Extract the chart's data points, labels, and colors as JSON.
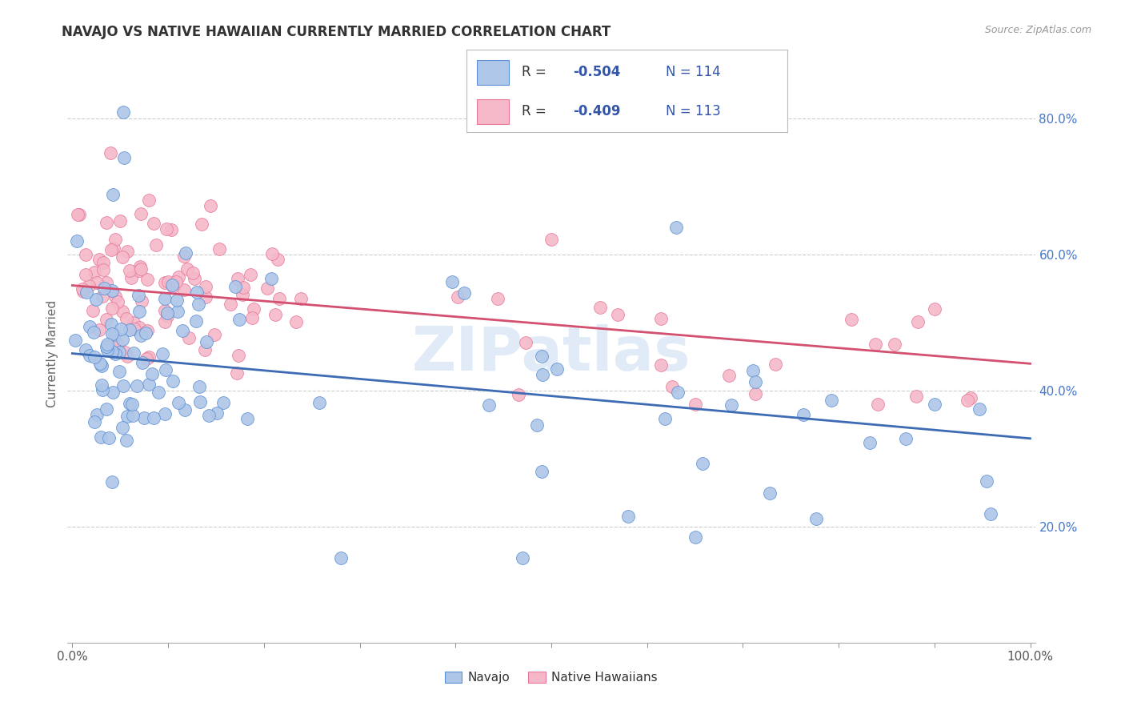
{
  "title": "NAVAJO VS NATIVE HAWAIIAN CURRENTLY MARRIED CORRELATION CHART",
  "source": "Source: ZipAtlas.com",
  "ylabel": "Currently Married",
  "legend_navajo": "Navajo",
  "legend_hawaiian": "Native Hawaiians",
  "navajo_R": "-0.504",
  "navajo_N": "114",
  "hawaiian_R": "-0.409",
  "hawaiian_N": "113",
  "navajo_color": "#aec6e8",
  "hawaiian_color": "#f4b8c8",
  "navajo_edge_color": "#5b8fd4",
  "hawaiian_edge_color": "#e8789a",
  "navajo_line_color": "#3d6cb5",
  "hawaiian_line_color": "#d45070",
  "background_color": "#ffffff",
  "grid_color": "#cccccc",
  "legend_text_color": "#3355aa",
  "watermark": "ZIPatlas",
  "ytick_color": "#4477cc",
  "nav_intercept": 0.455,
  "nav_slope": -0.125,
  "haw_intercept": 0.555,
  "haw_slope": -0.115,
  "ylim_low": 0.03,
  "ylim_high": 0.88,
  "xlim_low": -0.005,
  "xlim_high": 1.005
}
